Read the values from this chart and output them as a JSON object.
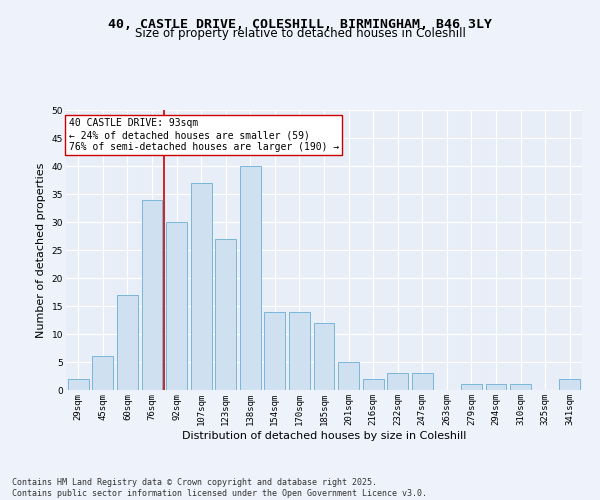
{
  "title_line1": "40, CASTLE DRIVE, COLESHILL, BIRMINGHAM, B46 3LY",
  "title_line2": "Size of property relative to detached houses in Coleshill",
  "xlabel": "Distribution of detached houses by size in Coleshill",
  "ylabel": "Number of detached properties",
  "bar_labels": [
    "29sqm",
    "45sqm",
    "60sqm",
    "76sqm",
    "92sqm",
    "107sqm",
    "123sqm",
    "138sqm",
    "154sqm",
    "170sqm",
    "185sqm",
    "201sqm",
    "216sqm",
    "232sqm",
    "247sqm",
    "263sqm",
    "279sqm",
    "294sqm",
    "310sqm",
    "325sqm",
    "341sqm"
  ],
  "bar_values": [
    2,
    6,
    17,
    34,
    30,
    37,
    27,
    40,
    14,
    14,
    12,
    5,
    2,
    3,
    3,
    0,
    1,
    1,
    1,
    0,
    2
  ],
  "bar_color": "#cfe0f1",
  "bar_edge_color": "#6aaed6",
  "vline_color": "#cc0000",
  "vline_x_idx": 4,
  "annotation_text": "40 CASTLE DRIVE: 93sqm\n← 24% of detached houses are smaller (59)\n76% of semi-detached houses are larger (190) →",
  "annotation_box_color": "#ffffff",
  "annotation_box_edge": "#cc0000",
  "background_color": "#eef2fa",
  "plot_bg_color": "#e8eef7",
  "grid_color": "#ffffff",
  "ylim": [
    0,
    50
  ],
  "yticks": [
    0,
    5,
    10,
    15,
    20,
    25,
    30,
    35,
    40,
    45,
    50
  ],
  "footnote": "Contains HM Land Registry data © Crown copyright and database right 2025.\nContains public sector information licensed under the Open Government Licence v3.0.",
  "title_fontsize": 9.5,
  "subtitle_fontsize": 8.5,
  "axis_label_fontsize": 8,
  "tick_fontsize": 6.5,
  "annotation_fontsize": 7,
  "footnote_fontsize": 6
}
